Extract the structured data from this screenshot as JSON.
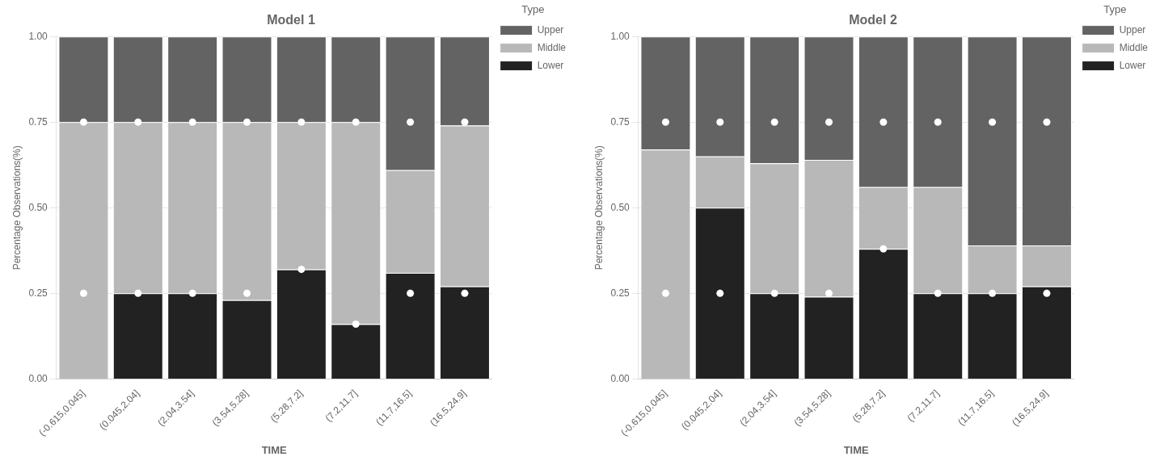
{
  "chart_data": [
    {
      "type": "bar",
      "stacked": true,
      "title": "Model 1",
      "categories": [
        "(-0.615,0.045]",
        "(0.045,2.04]",
        "(2.04,3.54]",
        "(3.54,5.28]",
        "(5.28,7.2]",
        "(7.2,11.7]",
        "(11.7,16.5]",
        "(16.5,24.9]"
      ],
      "xlabel": "TIME",
      "ylabel": "Percentage Observations(%)",
      "ylim": [
        0.0,
        1.0
      ],
      "yticks": [
        {
          "value": 0.0,
          "label": "0.00"
        },
        {
          "value": 0.25,
          "label": "0.25"
        },
        {
          "value": 0.5,
          "label": "0.50"
        },
        {
          "value": 0.75,
          "label": "0.75"
        },
        {
          "value": 1.0,
          "label": "1.00"
        }
      ],
      "grid": true,
      "legend": "right",
      "legend_title": "Type",
      "series": [
        {
          "name": "Lower",
          "color": "#222222",
          "values": [
            0.0,
            0.25,
            0.25,
            0.23,
            0.32,
            0.16,
            0.31,
            0.27
          ]
        },
        {
          "name": "Middle",
          "color": "#b8b8b8",
          "values": [
            0.75,
            0.5,
            0.5,
            0.52,
            0.43,
            0.59,
            0.3,
            0.47
          ]
        },
        {
          "name": "Upper",
          "color": "#636363",
          "values": [
            0.25,
            0.25,
            0.25,
            0.25,
            0.25,
            0.25,
            0.39,
            0.26
          ]
        },
        {
          "type": "scatter",
          "marker": "circle",
          "color": "#ffffff",
          "values": [
            0.25,
            0.25,
            0.25,
            0.25,
            0.32,
            0.16,
            0.25,
            0.25
          ]
        },
        {
          "type": "scatter",
          "marker": "circle",
          "color": "#ffffff",
          "values": [
            0.75,
            0.75,
            0.75,
            0.75,
            0.75,
            0.75,
            0.75,
            0.75
          ]
        }
      ]
    },
    {
      "type": "bar",
      "stacked": true,
      "title": "Model 2",
      "categories": [
        "(-0.615,0.045]",
        "(0.045,2.04]",
        "(2.04,3.54]",
        "(3.54,5.28]",
        "(5.28,7.2]",
        "(7.2,11.7]",
        "(11.7,16.5]",
        "(16.5,24.9]"
      ],
      "xlabel": "TIME",
      "ylabel": "Percentage Observations(%)",
      "ylim": [
        0.0,
        1.0
      ],
      "yticks": [
        {
          "value": 0.0,
          "label": "0.00"
        },
        {
          "value": 0.25,
          "label": "0.25"
        },
        {
          "value": 0.5,
          "label": "0.50"
        },
        {
          "value": 0.75,
          "label": "0.75"
        },
        {
          "value": 1.0,
          "label": "1.00"
        }
      ],
      "grid": true,
      "legend": "right",
      "legend_title": "Type",
      "series": [
        {
          "name": "Lower",
          "color": "#222222",
          "values": [
            0.0,
            0.5,
            0.25,
            0.24,
            0.38,
            0.25,
            0.25,
            0.27
          ]
        },
        {
          "name": "Middle",
          "color": "#b8b8b8",
          "values": [
            0.67,
            0.15,
            0.38,
            0.4,
            0.18,
            0.31,
            0.14,
            0.12
          ]
        },
        {
          "name": "Upper",
          "color": "#636363",
          "values": [
            0.33,
            0.35,
            0.37,
            0.36,
            0.44,
            0.44,
            0.61,
            0.61
          ]
        },
        {
          "type": "scatter",
          "marker": "circle",
          "color": "#ffffff",
          "values": [
            0.25,
            0.25,
            0.25,
            0.25,
            0.38,
            0.25,
            0.25,
            0.25
          ]
        },
        {
          "type": "scatter",
          "marker": "circle",
          "color": "#ffffff",
          "values": [
            0.75,
            0.75,
            0.75,
            0.75,
            0.75,
            0.75,
            0.75,
            0.75
          ]
        }
      ]
    }
  ]
}
